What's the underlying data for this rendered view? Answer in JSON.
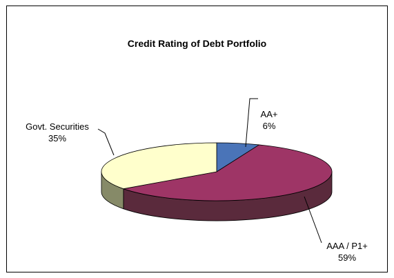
{
  "chart_data": {
    "type": "pie",
    "title": "Credit Rating of Debt Portfolio",
    "categories": [
      "AA+",
      "AAA / P1+",
      "Govt. Securities"
    ],
    "values": [
      6,
      59,
      35
    ],
    "value_labels": [
      "6%",
      "59%",
      "35%"
    ],
    "colors": [
      "#4A74B8",
      "#9E3566",
      "#FFFFCC"
    ],
    "side_colors": [
      "#2E4E82",
      "#5A2A3C",
      "#868A68"
    ],
    "style": "3d-exploded-none",
    "legend": "none"
  }
}
